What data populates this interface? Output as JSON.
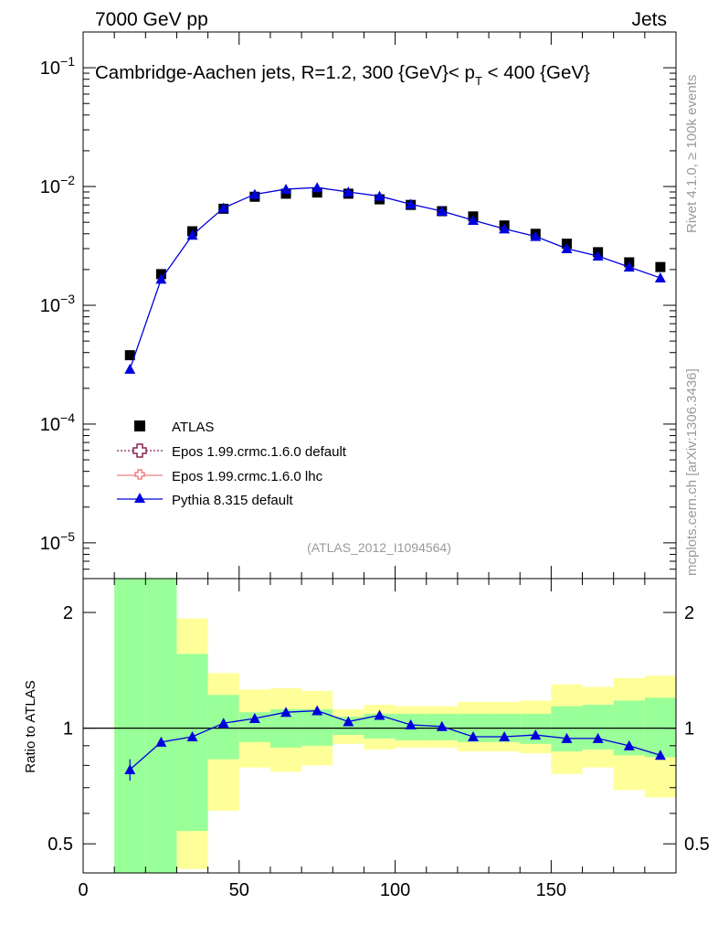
{
  "header": {
    "left": "7000 GeV pp",
    "right": "Jets"
  },
  "side": {
    "rivet": "Rivet 4.1.0, ≥ 100k events",
    "mcplots": "mcplots.cern.ch [arXiv:1306.3436]"
  },
  "chart_data": [
    {
      "type": "scatter",
      "panel": "main",
      "title": "Cambridge-Aachen jets, R=1.2, 300 {GeV}< p_T < 400 {GeV}",
      "title_parts": {
        "main": "Cambridge-Aachen jets, R=1.2, 300 {GeV}< p",
        "sub": "T",
        "tail": " < 400 {GeV}"
      },
      "watermark": "(ATLAS_2012_I1094564)",
      "yscale": "log",
      "xlim": [
        0,
        190
      ],
      "ylim": [
        5e-06,
        0.2
      ],
      "yticks": [
        {
          "value": 0.1,
          "base": "10",
          "exp": "−1"
        },
        {
          "value": 0.01,
          "base": "10",
          "exp": "−2"
        },
        {
          "value": 0.001,
          "base": "10",
          "exp": "−3"
        },
        {
          "value": 0.0001,
          "base": "10",
          "exp": "−4"
        },
        {
          "value": 1e-05,
          "base": "10",
          "exp": "−5"
        }
      ],
      "x": [
        15,
        25,
        35,
        45,
        55,
        65,
        75,
        85,
        95,
        105,
        115,
        125,
        135,
        145,
        155,
        165,
        175,
        185
      ],
      "series": [
        {
          "name": "ATLAS",
          "marker": "square",
          "color": "#000000",
          "values": [
            0.00038,
            0.00183,
            0.0042,
            0.0065,
            0.0082,
            0.0087,
            0.0089,
            0.0087,
            0.0078,
            0.007,
            0.0062,
            0.0056,
            0.0047,
            0.004,
            0.0033,
            0.0028,
            0.0023,
            0.0021
          ]
        },
        {
          "name": "Epos 1.99.crmc.1.6.0 default",
          "marker": "open-cross",
          "color": "#8b2252",
          "values": []
        },
        {
          "name": "Epos 1.99.crmc.1.6.0 lhc",
          "marker": "open-cross",
          "color": "#f08080",
          "values": []
        },
        {
          "name": "Pythia 8.315 default",
          "marker": "triangle",
          "color": "#0000dd",
          "values": [
            0.00029,
            0.00166,
            0.0039,
            0.0066,
            0.0086,
            0.0095,
            0.0098,
            0.009,
            0.0083,
            0.0071,
            0.0062,
            0.0052,
            0.0044,
            0.0038,
            0.003,
            0.0026,
            0.0021,
            0.0017
          ]
        }
      ]
    },
    {
      "type": "line",
      "panel": "ratio",
      "ylabel": "Ratio to ATLAS",
      "yscale": "log",
      "xlim": [
        0,
        190
      ],
      "ylim": [
        0.42,
        2.45
      ],
      "yticks": [
        {
          "value": 2,
          "label": "2"
        },
        {
          "value": 1,
          "label": "1"
        },
        {
          "value": 0.5,
          "label": "0.5"
        }
      ],
      "xticks": [
        {
          "value": 0,
          "label": "0"
        },
        {
          "value": 50,
          "label": "50"
        },
        {
          "value": 100,
          "label": "100"
        },
        {
          "value": 150,
          "label": "150"
        }
      ],
      "bands": {
        "bins": [
          [
            10,
            20
          ],
          [
            20,
            30
          ],
          [
            30,
            40
          ],
          [
            40,
            50
          ],
          [
            50,
            60
          ],
          [
            60,
            70
          ],
          [
            70,
            80
          ],
          [
            80,
            90
          ],
          [
            90,
            100
          ],
          [
            100,
            110
          ],
          [
            110,
            120
          ],
          [
            120,
            130
          ],
          [
            130,
            140
          ],
          [
            140,
            150
          ],
          [
            150,
            160
          ],
          [
            160,
            170
          ],
          [
            170,
            180
          ],
          [
            180,
            190
          ]
        ],
        "yellow": [
          [
            0.3,
            3.2
          ],
          [
            0.3,
            2.5
          ],
          [
            0.43,
            1.93
          ],
          [
            0.61,
            1.39
          ],
          [
            0.79,
            1.26
          ],
          [
            0.77,
            1.27
          ],
          [
            0.8,
            1.25
          ],
          [
            0.91,
            1.12
          ],
          [
            0.88,
            1.15
          ],
          [
            0.89,
            1.14
          ],
          [
            0.89,
            1.14
          ],
          [
            0.87,
            1.17
          ],
          [
            0.87,
            1.17
          ],
          [
            0.86,
            1.18
          ],
          [
            0.76,
            1.3
          ],
          [
            0.79,
            1.28
          ],
          [
            0.69,
            1.35
          ],
          [
            0.66,
            1.37
          ]
        ],
        "green": [
          [
            0.3,
            3.2
          ],
          [
            0.3,
            3.2
          ],
          [
            0.54,
            1.56
          ],
          [
            0.83,
            1.22
          ],
          [
            0.92,
            1.1
          ],
          [
            0.89,
            1.12
          ],
          [
            0.9,
            1.12
          ],
          [
            0.96,
            1.07
          ],
          [
            0.94,
            1.09
          ],
          [
            0.93,
            1.09
          ],
          [
            0.93,
            1.09
          ],
          [
            0.92,
            1.09
          ],
          [
            0.92,
            1.09
          ],
          [
            0.91,
            1.09
          ],
          [
            0.87,
            1.14
          ],
          [
            0.88,
            1.15
          ],
          [
            0.85,
            1.18
          ],
          [
            0.84,
            1.2
          ]
        ]
      },
      "series": [
        {
          "name": "Pythia 8.315 default / ATLAS",
          "color": "#0000dd",
          "x": [
            15,
            25,
            35,
            45,
            55,
            65,
            75,
            85,
            95,
            105,
            115,
            125,
            135,
            145,
            155,
            165,
            175,
            185
          ],
          "values": [
            0.78,
            0.92,
            0.95,
            1.03,
            1.06,
            1.1,
            1.11,
            1.04,
            1.08,
            1.02,
            1.01,
            0.95,
            0.95,
            0.96,
            0.94,
            0.94,
            0.9,
            0.85
          ],
          "err": [
            0.05,
            0.02,
            0.01,
            0.01,
            0.01,
            0.01,
            0.01,
            0.01,
            0.01,
            0.01,
            0.01,
            0.01,
            0.01,
            0.01,
            0.01,
            0.01,
            0.02,
            0.02
          ]
        }
      ]
    }
  ]
}
